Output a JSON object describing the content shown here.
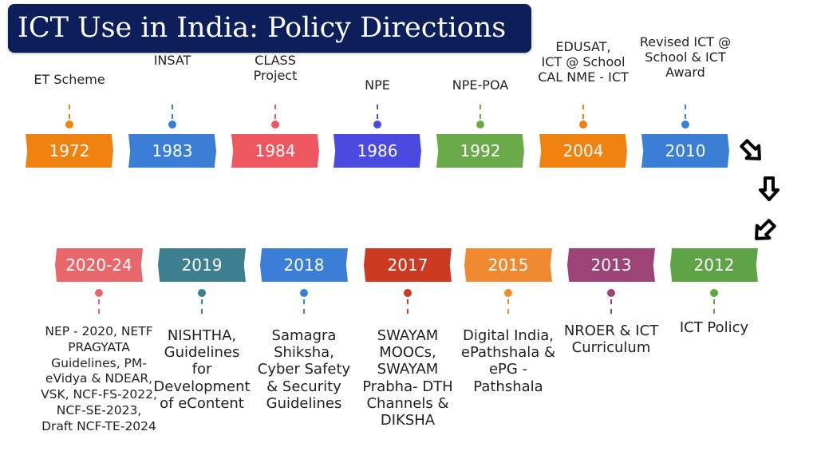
{
  "title": "ICT Use in India: Policy Directions",
  "top_row": [
    {
      "year": "1972",
      "label": "ET Scheme",
      "color": "#f08210"
    },
    {
      "year": "1983",
      "label": "INSAT",
      "color": "#3a7fd5"
    },
    {
      "year": "1984",
      "label": "CLASS\nProject",
      "color": "#ef5760"
    },
    {
      "year": "1986",
      "label": "NPE",
      "color": "#4a4ae0"
    },
    {
      "year": "1992",
      "label": "NPE-POA",
      "color": "#6aaa48"
    },
    {
      "year": "2004",
      "label": "EDUSAT,\nICT @ School\nCAL NME - ICT",
      "color": "#f08210"
    },
    {
      "year": "2010",
      "label": "Revised ICT @\nSchool & ICT\nAward",
      "color": "#3a7fd5"
    }
  ],
  "bottom_row": [
    {
      "year": "2020-24",
      "label": "NEP - 2020,  NETF\nPRAGYATA\nGuidelines, PM-\neVidya & NDEAR,\nVSK, NCF-FS-2022,\nNCF-SE-2023,\nDraft NCF-TE-2024",
      "color": "#e8676a"
    },
    {
      "year": "2019",
      "label": "NISHTHA,\nGuidelines\nfor\nDevelopment\nof eContent",
      "color": "#3d7f8e"
    },
    {
      "year": "2018",
      "label": "Samagra\nShiksha,\nCyber Safety\n& Security\nGuidelines",
      "color": "#3a7fd5"
    },
    {
      "year": "2017",
      "label": "SWAYAM\nMOOCs,\nSWAYAM\nPrabha- DTH\nChannels &\nDIKSHA",
      "color": "#cc3a22"
    },
    {
      "year": "2015",
      "label": "Digital India,\nePathshala &\nePG -\nPathshala",
      "color": "#ef8a30"
    },
    {
      "year": "2013",
      "label": "NROER & ICT\nCurriculum",
      "color": "#9c4377"
    },
    {
      "year": "2012",
      "label": "ICT Policy",
      "color": "#5ea345"
    }
  ],
  "icons": [
    "arrow-down-right-icon",
    "arrow-down-icon",
    "arrow-down-left-icon"
  ]
}
